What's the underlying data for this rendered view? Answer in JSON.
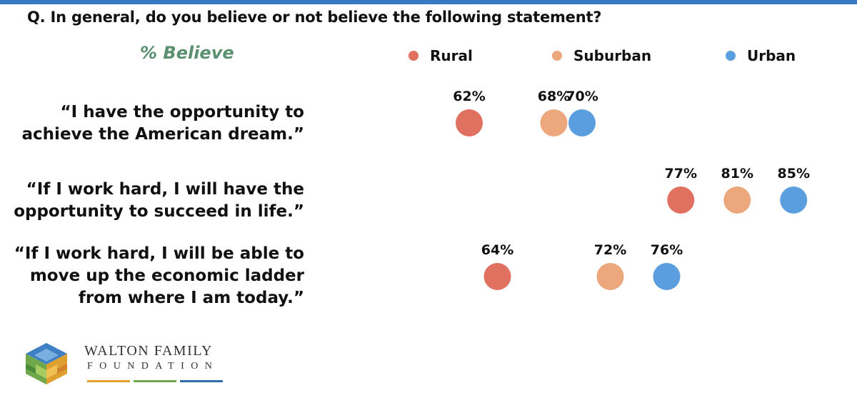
{
  "question": "Q.  In general, do you believe or not believe the following statement?",
  "measure_label": "% Believe",
  "colors": {
    "rural": "#e07060",
    "suburban": "#eda77d",
    "urban": "#5b9ee0",
    "measure": "#5a8f6f",
    "topbar": "#3b78c4"
  },
  "legend": [
    {
      "name": "Rural",
      "color": "#e07060"
    },
    {
      "name": "Suburban",
      "color": "#eda77d"
    },
    {
      "name": "Urban",
      "color": "#5b9ee0"
    }
  ],
  "statements": [
    {
      "line1": "“I have the opportunity to",
      "line2": "achieve the American dream.”",
      "line3": ""
    },
    {
      "line1": "“If I work hard, I will have the",
      "line2": "opportunity to succeed in life.”",
      "line3": ""
    },
    {
      "line1": "“If I work hard, I will be able to",
      "line2": "move up the economic ladder",
      "line3": "from where I am today.”"
    }
  ],
  "chart_data": {
    "type": "scatter",
    "categories": [
      "“I have the opportunity to achieve the American dream.”",
      "“If I work hard, I will have the opportunity to succeed in life.”",
      "“If I work hard, I will be able to move up the economic ladder from where I am today.”"
    ],
    "series": [
      {
        "name": "Rural",
        "values": [
          62,
          77,
          64
        ],
        "labels": [
          "62%",
          "77%",
          "64%"
        ]
      },
      {
        "name": "Suburban",
        "values": [
          68,
          81,
          72
        ],
        "labels": [
          "68%",
          "81%",
          "72%"
        ]
      },
      {
        "name": "Urban",
        "values": [
          70,
          85,
          76
        ],
        "labels": [
          "70%",
          "85%",
          "76%"
        ]
      }
    ],
    "title": "",
    "xlabel": "% Believe",
    "ylabel": "",
    "xlim": [
      60,
      86
    ],
    "grid": false,
    "legend": "top"
  },
  "org": {
    "line1": "WALTON FAMILY",
    "line2": "FOUNDATION",
    "bar_colors": [
      "#e0a030",
      "#6fa84a",
      "#2f6fa8"
    ]
  }
}
